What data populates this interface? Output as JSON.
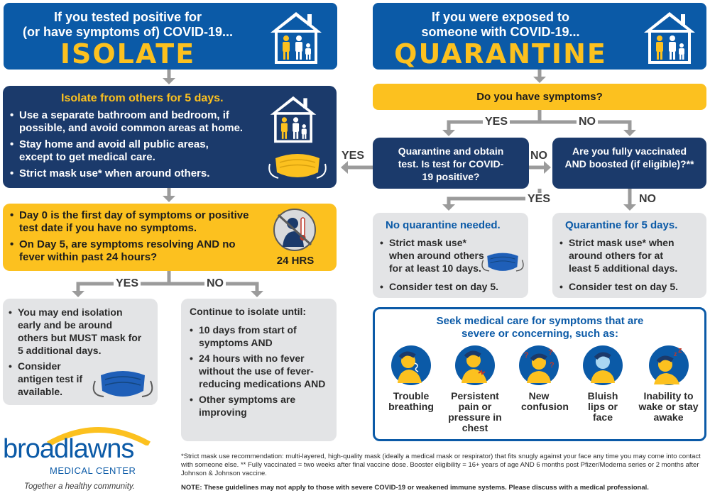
{
  "isolate_header": {
    "line1": "If you tested positive for",
    "line2": "(or have symptoms of) COVID-19...",
    "big": "ISOLATE"
  },
  "quarantine_header": {
    "line1": "If you were exposed to",
    "line2": "someone with COVID-19...",
    "big": "QUARANTINE"
  },
  "isolate_box": {
    "title": "Isolate from others for 5 days.",
    "items": [
      "Use a separate bathroom and bedroom, if possible, and avoid common areas at home.",
      "Stay home and avoid all public areas, except to get medical care.",
      "Strict mask use* when around others."
    ]
  },
  "day_box": {
    "items": [
      "Day 0 is the first day of symptoms or positive test date if you have no symptoms.",
      "On Day 5, are symptoms resolving AND no fever within past 24 hours?"
    ],
    "hours_label": "24 HRS"
  },
  "left_yes_box": {
    "items": [
      "You may end isolation early and be around others but MUST mask for 5 additional days.",
      "Consider antigen test if available."
    ]
  },
  "left_no_box": {
    "title": "Continue to isolate until:",
    "items": [
      "10 days from start of symptoms AND",
      "24 hours with no fever without the use of fever-reducing medications AND",
      "Other symptoms are improving"
    ]
  },
  "labels": {
    "yes": "YES",
    "no": "NO"
  },
  "symptoms_q": "Do you have symptoms?",
  "test_box": "Quarantine and obtain test. Is test for COVID-19 positive?",
  "vaccinated_box": "Are you fully vaccinated AND boosted (if eligible)?**",
  "no_quarantine_box": {
    "title": "No quarantine needed.",
    "items": [
      "Strict mask use* when around others for at least 10 days.",
      "Consider test on day 5."
    ]
  },
  "quarantine5_box": {
    "title": "Quarantine for 5 days.",
    "items": [
      "Strict mask use* when around others for at least 5 additional days.",
      "Consider test on day 5."
    ]
  },
  "medical_box": {
    "title": "Seek medical care for symptoms that are severe or concerning, such as:",
    "symptoms": [
      {
        "label": "Trouble breathing",
        "icon": "trouble-breathing-icon"
      },
      {
        "label": "Persistent pain or pressure in chest",
        "icon": "chest-pain-icon"
      },
      {
        "label": "New confusion",
        "icon": "confusion-icon"
      },
      {
        "label": "Bluish lips or face",
        "icon": "bluish-face-icon"
      },
      {
        "label": "Inability to wake or stay awake",
        "icon": "unable-to-wake-icon"
      }
    ]
  },
  "logo": {
    "name": "broadlawns",
    "subtitle": "MEDICAL CENTER",
    "tagline": "Together a healthy community."
  },
  "footnote": "*Strict mask use recommendation: multi-layered, high-quality mask (ideally a medical mask or respirator) that fits snugly against your face any time you may come into contact with someone else.    ** Fully vaccinated = two weeks after final vaccine dose. Booster eligibility = 16+ years of age AND 6 months post Pfizer/Moderna series or 2 months after Johnson & Johnson vaccine.",
  "note": "NOTE: These guidelines may not apply to those with severe COVID-19 or weakened immune systems. Please discuss with a medical professional.",
  "colors": {
    "blue": "#0b5aa7",
    "navy": "#1b3a6b",
    "yellow": "#fcc11f",
    "gray": "#e3e4e6",
    "mask": "#1f5fb8"
  }
}
